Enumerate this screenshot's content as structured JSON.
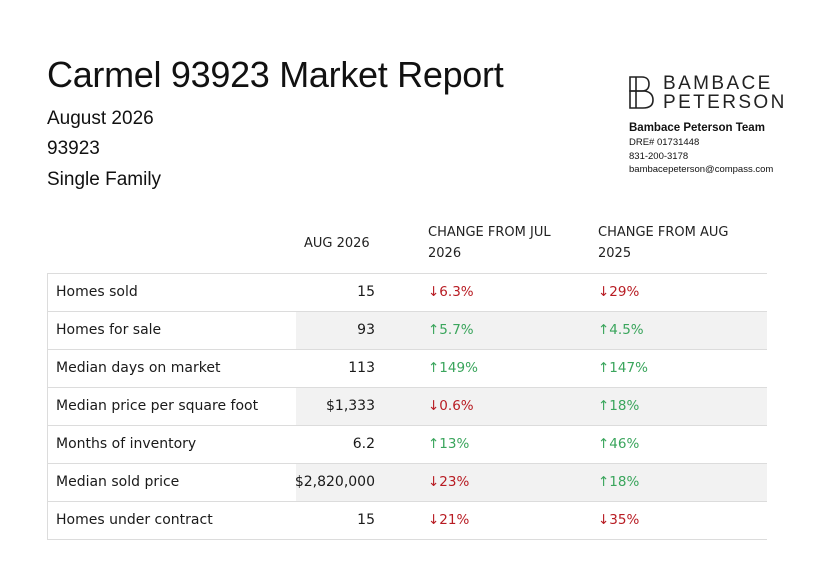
{
  "report": {
    "title": "Carmel 93923 Market Report",
    "month": "August 2026",
    "zip": "93923",
    "property_type": "Single Family"
  },
  "brand": {
    "logo_line1": "BAMBACE",
    "logo_line2": "PETERSON",
    "team_name": "Bambace Peterson Team",
    "dre": "DRE# 01731448",
    "phone": "831-200-3178",
    "email": "bambacepeterson@compass.com"
  },
  "columns": {
    "current": "AUG 2026",
    "change_month_line1": "CHANGE FROM JUL",
    "change_month_line2": "2026",
    "change_year_line1": "CHANGE FROM AUG",
    "change_year_line2": "2025"
  },
  "colors": {
    "up": "#3aa55c",
    "down": "#b81c23"
  },
  "rows": [
    {
      "label": "Homes sold",
      "value": "15",
      "mom": "↓6.3%",
      "mom_dir": "down",
      "yoy": "↓29%",
      "yoy_dir": "down"
    },
    {
      "label": "Homes for sale",
      "value": "93",
      "mom": "↑5.7%",
      "mom_dir": "up",
      "yoy": "↑4.5%",
      "yoy_dir": "up"
    },
    {
      "label": "Median days on market",
      "value": "113",
      "mom": "↑149%",
      "mom_dir": "up",
      "yoy": "↑147%",
      "yoy_dir": "up"
    },
    {
      "label": "Median price per square foot",
      "value": "$1,333",
      "mom": "↓0.6%",
      "mom_dir": "down",
      "yoy": "↑18%",
      "yoy_dir": "up"
    },
    {
      "label": "Months of inventory",
      "value": "6.2",
      "mom": "↑13%",
      "mom_dir": "up",
      "yoy": "↑46%",
      "yoy_dir": "up"
    },
    {
      "label": "Median sold price",
      "value": "$2,820,000",
      "mom": "↓23%",
      "mom_dir": "down",
      "yoy": "↑18%",
      "yoy_dir": "up"
    },
    {
      "label": "Homes under contract",
      "value": "15",
      "mom": "↓21%",
      "mom_dir": "down",
      "yoy": "↓35%",
      "yoy_dir": "down"
    }
  ]
}
